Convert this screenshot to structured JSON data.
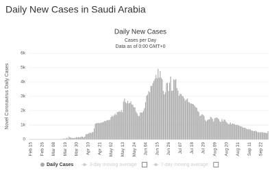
{
  "header": {
    "title": "Daily New Cases in Saudi Arabia"
  },
  "chart_data": {
    "type": "bar",
    "title": "Daily New Cases",
    "subtitle": "Cases per Day",
    "note": "Data as of 0:00 GMT+0",
    "y_label": "Novel Coronavirus Daily Cases",
    "ylim": [
      0,
      6000
    ],
    "yticks": [
      0,
      {
        "value": 1000,
        "label": "1k"
      },
      {
        "value": 2000,
        "label": "2k"
      },
      {
        "value": 3000,
        "label": "3k"
      },
      {
        "value": 4000,
        "label": "4k"
      },
      {
        "value": 5000,
        "label": "5k"
      },
      {
        "value": 6000,
        "label": "6k"
      }
    ],
    "grid": true,
    "categories": [
      "Feb 15",
      null,
      null,
      null,
      null,
      null,
      null,
      null,
      null,
      null,
      null,
      "Feb 26",
      null,
      null,
      null,
      null,
      null,
      null,
      null,
      null,
      null,
      null,
      "Mar 08",
      null,
      null,
      null,
      null,
      null,
      null,
      null,
      null,
      null,
      null,
      "Mar 19",
      null,
      null,
      null,
      null,
      null,
      null,
      null,
      null,
      null,
      null,
      "Mar 30",
      null,
      null,
      null,
      null,
      null,
      null,
      null,
      null,
      null,
      null,
      "Apr 10",
      null,
      null,
      null,
      null,
      null,
      null,
      null,
      null,
      null,
      null,
      "Apr 21",
      null,
      null,
      null,
      null,
      null,
      null,
      null,
      null,
      null,
      null,
      "May 02",
      null,
      null,
      null,
      null,
      null,
      null,
      null,
      null,
      null,
      null,
      "May 13",
      null,
      null,
      null,
      null,
      null,
      null,
      null,
      null,
      null,
      null,
      "May 24",
      null,
      null,
      null,
      null,
      null,
      null,
      null,
      null,
      null,
      null,
      "Jun 04",
      null,
      null,
      null,
      null,
      null,
      null,
      null,
      null,
      null,
      null,
      "Jun 15",
      null,
      null,
      null,
      null,
      null,
      null,
      null,
      null,
      null,
      null,
      "Jun 26",
      null,
      null,
      null,
      null,
      null,
      null,
      null,
      null,
      null,
      null,
      "Jul 07",
      null,
      null,
      null,
      null,
      null,
      null,
      null,
      null,
      null,
      null,
      "Jul 18",
      null,
      null,
      null,
      null,
      null,
      null,
      null,
      null,
      null,
      null,
      "Jul 29",
      null,
      null,
      null,
      null,
      null,
      null,
      null,
      null,
      null,
      null,
      "Aug 09",
      null,
      null,
      null,
      null,
      null,
      null,
      null,
      null,
      null,
      null,
      "Aug 20",
      null,
      null,
      null,
      null,
      null,
      null,
      null,
      null,
      null,
      null,
      "Aug 31",
      null,
      null,
      null,
      null,
      null,
      null,
      null,
      null,
      null,
      null,
      "Sep 11",
      null,
      null,
      null,
      null,
      null,
      null,
      null,
      null,
      null,
      null,
      "Sep 22",
      null,
      null,
      null,
      null,
      null,
      null,
      null,
      null
    ],
    "series": [
      {
        "name": "Daily Cases",
        "color": "#a9a9a9",
        "values": [
          0,
          0,
          0,
          0,
          0,
          0,
          0,
          0,
          0,
          0,
          0,
          0,
          0,
          0,
          0,
          0,
          1,
          0,
          0,
          0,
          2,
          0,
          4,
          4,
          4,
          1,
          0,
          3,
          24,
          17,
          15,
          15,
          38,
          67,
          36,
          70,
          119,
          48,
          205,
          133,
          112,
          92,
          99,
          96,
          110,
          157,
          138,
          165,
          140,
          154,
          206,
          191,
          138,
          190,
          355,
          364,
          382,
          429,
          472,
          435,
          493,
          518,
          762,
          1088,
          1122,
          1147,
          1141,
          1132,
          1158,
          1172,
          1197,
          1223,
          1289,
          1266,
          1325,
          1351,
          1344,
          1362,
          1552,
          1645,
          1595,
          1687,
          1793,
          1701,
          1905,
          1912,
          1966,
          1911,
          2039,
          1905,
          2642,
          2840,
          2593,
          2509,
          2691,
          2509,
          2532,
          2642,
          2442,
          2399,
          2235,
          2233,
          1931,
          1815,
          1644,
          1618,
          1881,
          1869,
          1877,
          1975,
          2171,
          2591,
          3045,
          3121,
          3369,
          3288,
          3717,
          3733,
          3921,
          4085,
          4233,
          4507,
          4267,
          4919,
          4301,
          4757,
          4301,
          4192,
          3379,
          3139,
          3288,
          3927,
          3938,
          3372,
          3943,
          4387,
          3383,
          3402,
          4193,
          4128,
          4207,
          3580,
          3392,
          3036,
          3183,
          3159,
          3036,
          2994,
          2852,
          2692,
          2779,
          2852,
          2613,
          2565,
          2500,
          2504,
          2476,
          2429,
          2331,
          2238,
          2201,
          1968,
          1897,
          1629,
          1686,
          1759,
          1709,
          1629,
          1357,
          1258,
          1342,
          1402,
          1389,
          1567,
          1530,
          1428,
          1257,
          1469,
          1497,
          1521,
          1488,
          1402,
          1257,
          1213,
          1409,
          1258,
          1379,
          1357,
          1226,
          1147,
          1069,
          1059,
          1184,
          1048,
          1114,
          1075,
          1069,
          1001,
          1019,
          1004,
          974,
          943,
          908,
          898,
          823,
          815,
          808,
          770,
          705,
          729,
          686,
          717,
          629,
          610,
          580,
          573,
          603,
          560,
          520,
          497,
          483,
          492,
          500,
          490,
          472,
          467,
          459,
          432,
          570
        ]
      }
    ],
    "legend_extra": [
      {
        "name": "3-day moving average",
        "visible": false
      },
      {
        "name": "7-day moving average",
        "visible": false
      }
    ]
  }
}
